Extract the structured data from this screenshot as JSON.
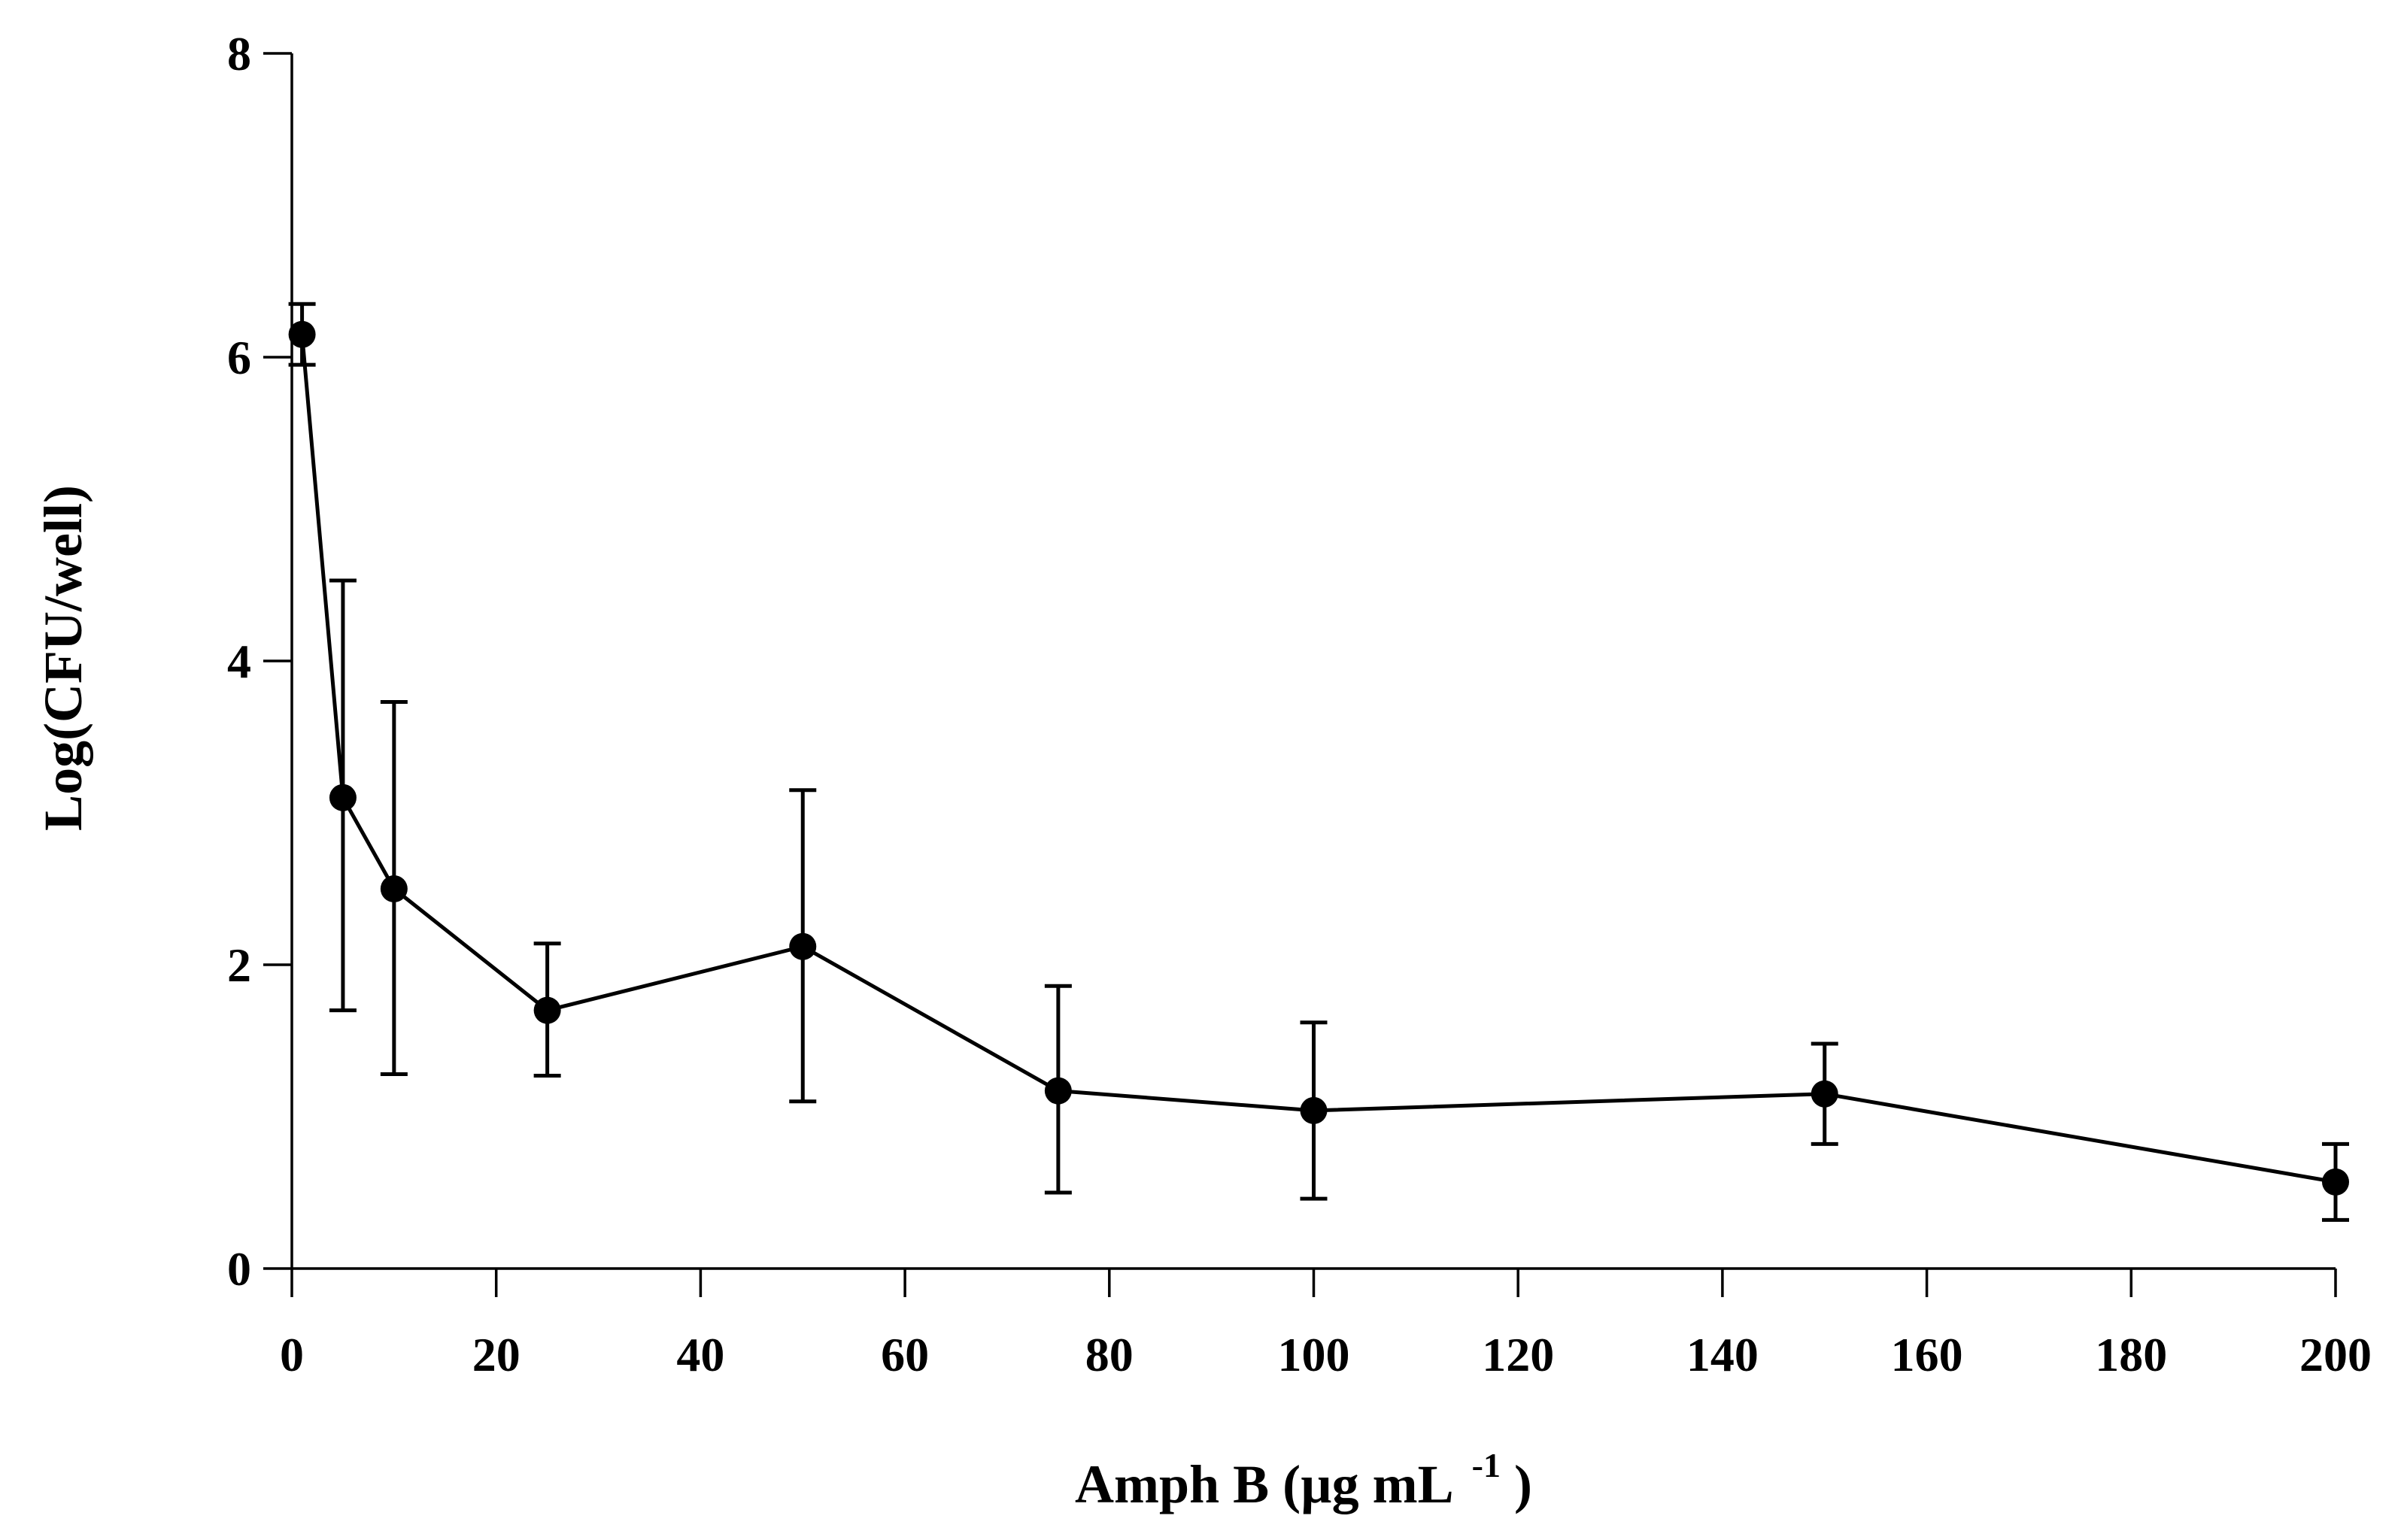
{
  "chart_data": {
    "type": "line",
    "title": "",
    "xlabel": "Amph B (µg mL",
    "xlabel_superscript": "-1",
    "xlabel_suffix": ")",
    "ylabel": "Log(CFU/well)",
    "xlim": [
      0,
      200
    ],
    "ylim": [
      0,
      8
    ],
    "x_ticks": [
      0,
      20,
      40,
      60,
      80,
      100,
      120,
      140,
      160,
      180,
      200
    ],
    "x_tick_labels": [
      "0",
      "20",
      "40",
      "60",
      "80",
      "100",
      "120",
      "140",
      "160",
      "180",
      "200"
    ],
    "y_ticks": [
      0,
      2,
      4,
      6,
      8
    ],
    "y_tick_labels": [
      "0",
      "2",
      "4",
      "6",
      "8"
    ],
    "grid": false,
    "legend": "none",
    "series": [
      {
        "name": "Log(CFU/well)",
        "color": "#000000",
        "marker": "circle",
        "x": [
          1,
          5,
          10,
          25,
          50,
          75,
          100,
          150,
          200
        ],
        "y": [
          6.15,
          3.1,
          2.5,
          1.7,
          2.12,
          1.17,
          1.04,
          1.15,
          0.57
        ],
        "err_low": [
          5.95,
          1.7,
          1.28,
          1.27,
          1.1,
          0.5,
          0.46,
          0.82,
          0.32
        ],
        "err_high": [
          6.35,
          4.53,
          3.73,
          2.14,
          3.15,
          1.86,
          1.62,
          1.48,
          0.82
        ]
      }
    ]
  }
}
